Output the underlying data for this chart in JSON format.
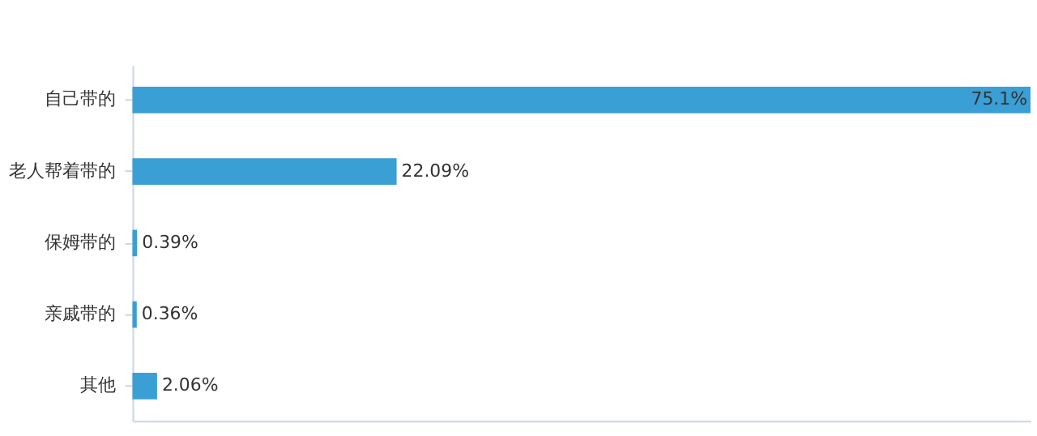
{
  "chart_data": {
    "type": "bar",
    "orientation": "horizontal",
    "categories": [
      "自己带的",
      "老人帮着带的",
      "保姆带的",
      "亲戚带的",
      "其他"
    ],
    "values": [
      75.1,
      22.09,
      0.39,
      0.36,
      2.06
    ],
    "value_labels": [
      "75.1%",
      "22.09%",
      "0.39%",
      "0.36%",
      "2.06%"
    ],
    "color": "#3a9fd5",
    "grid": false,
    "tick_labels": "y"
  }
}
